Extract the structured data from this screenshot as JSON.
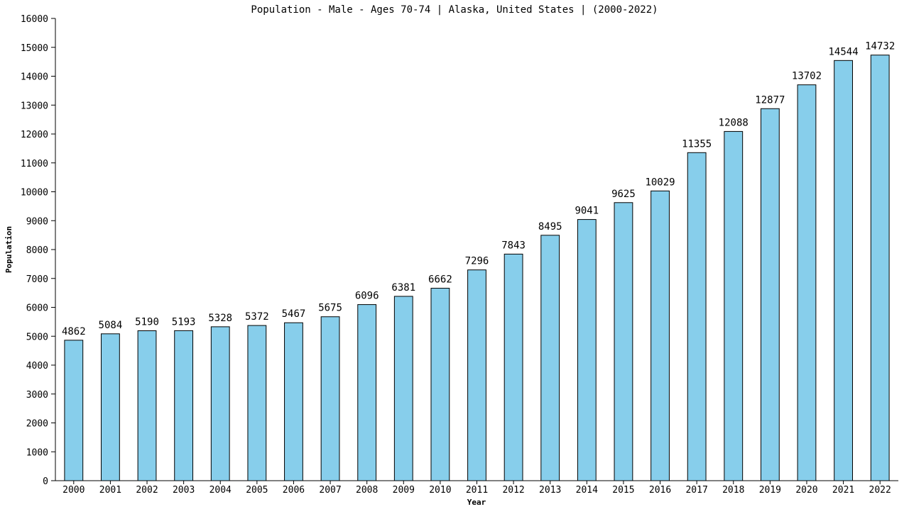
{
  "chart_data": {
    "type": "bar",
    "title": "Population - Male - Ages 70-74 | Alaska, United States |  (2000-2022)",
    "xlabel": "Year",
    "ylabel": "Population",
    "categories": [
      "2000",
      "2001",
      "2002",
      "2003",
      "2004",
      "2005",
      "2006",
      "2007",
      "2008",
      "2009",
      "2010",
      "2011",
      "2012",
      "2013",
      "2014",
      "2015",
      "2016",
      "2017",
      "2018",
      "2019",
      "2020",
      "2021",
      "2022"
    ],
    "values": [
      4862,
      5084,
      5190,
      5193,
      5328,
      5372,
      5467,
      5675,
      6096,
      6381,
      6662,
      7296,
      7843,
      8495,
      9041,
      9625,
      10029,
      11355,
      12088,
      12877,
      13702,
      14544,
      14732
    ],
    "ylim": [
      0,
      16000
    ],
    "yticks": [
      0,
      1000,
      2000,
      3000,
      4000,
      5000,
      6000,
      7000,
      8000,
      9000,
      10000,
      11000,
      12000,
      13000,
      14000,
      15000,
      16000
    ],
    "bar_color": "#87ceeb",
    "bar_outline_color": "#000000",
    "grid": false,
    "legend": "none"
  }
}
